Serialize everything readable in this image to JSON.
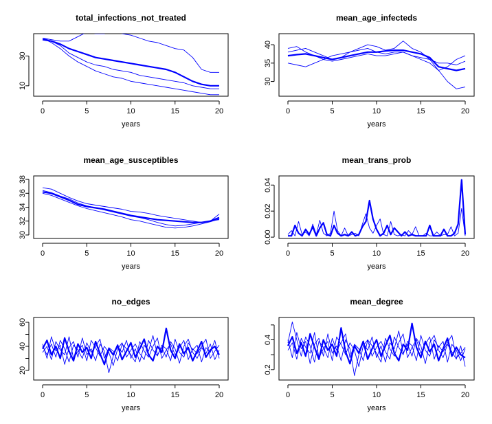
{
  "chart_data": [
    {
      "type": "line",
      "title": "total_infections_not_treated",
      "xlabel": "years",
      "ylabel": "",
      "xlim": [
        0,
        20
      ],
      "ylim": [
        3,
        45
      ],
      "xticks": [
        0,
        5,
        10,
        15,
        20
      ],
      "yticks": [
        10,
        30
      ],
      "x": [
        0,
        1,
        2,
        3,
        4,
        5,
        6,
        7,
        8,
        9,
        10,
        11,
        12,
        13,
        14,
        15,
        16,
        17,
        18,
        19,
        20
      ],
      "series": [
        {
          "bold": true,
          "values": [
            41,
            40,
            38,
            35,
            33,
            31,
            29,
            28,
            27,
            26,
            25,
            24,
            23,
            22,
            21,
            19,
            16,
            13,
            11,
            10,
            10
          ]
        },
        {
          "bold": false,
          "values": [
            42,
            41,
            40,
            40,
            43,
            46,
            45,
            45,
            47,
            45,
            44,
            42,
            40,
            39,
            37,
            35,
            34,
            29,
            21,
            19,
            19
          ]
        },
        {
          "bold": false,
          "values": [
            42,
            40,
            37,
            32,
            29,
            26,
            24,
            23,
            21,
            20,
            19,
            17,
            16,
            15,
            14,
            13,
            12,
            10,
            9,
            8,
            8
          ]
        },
        {
          "bold": false,
          "values": [
            42,
            39,
            35,
            30,
            26,
            23,
            20,
            18,
            16,
            15,
            13,
            12,
            11,
            10,
            9,
            8,
            7,
            6,
            5,
            4,
            4
          ]
        }
      ]
    },
    {
      "type": "line",
      "title": "mean_age_infecteds",
      "xlabel": "years",
      "ylabel": "",
      "xlim": [
        0,
        20
      ],
      "ylim": [
        26,
        43
      ],
      "xticks": [
        0,
        5,
        10,
        15,
        20
      ],
      "yticks": [
        30,
        35,
        40
      ],
      "x": [
        0,
        1,
        2,
        3,
        4,
        5,
        6,
        7,
        8,
        9,
        10,
        11,
        12,
        13,
        14,
        15,
        16,
        17,
        18,
        19,
        20
      ],
      "series": [
        {
          "bold": true,
          "values": [
            37,
            37.3,
            37.5,
            37,
            36.5,
            36,
            36.5,
            37,
            37.5,
            38,
            38,
            38.3,
            38.5,
            38.5,
            38,
            37.5,
            36.5,
            34,
            33.5,
            33,
            33.5
          ]
        },
        {
          "bold": false,
          "values": [
            38,
            38.5,
            39,
            38,
            37,
            36,
            36.5,
            38,
            39,
            40,
            39.5,
            38.5,
            39,
            41,
            39,
            38,
            36,
            33,
            34,
            36,
            37
          ]
        },
        {
          "bold": false,
          "values": [
            35,
            34.5,
            34,
            35,
            36,
            37,
            37.5,
            38,
            38.5,
            39,
            38,
            37.5,
            38,
            38,
            37,
            36,
            35,
            33,
            30,
            28,
            28.5
          ]
        },
        {
          "bold": false,
          "values": [
            39,
            39.5,
            38,
            37,
            36,
            35.5,
            36,
            36.5,
            37,
            37.5,
            37,
            37,
            37.5,
            38,
            37,
            36.5,
            36,
            35,
            35,
            34.5,
            35.5
          ]
        }
      ]
    },
    {
      "type": "line",
      "title": "mean_age_susceptibles",
      "xlabel": "years",
      "ylabel": "",
      "xlim": [
        0,
        20
      ],
      "ylim": [
        29.5,
        38.5
      ],
      "xticks": [
        0,
        5,
        10,
        15,
        20
      ],
      "yticks": [
        30,
        32,
        34,
        36,
        38
      ],
      "x": [
        0,
        1,
        2,
        3,
        4,
        5,
        6,
        7,
        8,
        9,
        10,
        11,
        12,
        13,
        14,
        15,
        16,
        17,
        18,
        19,
        20
      ],
      "series": [
        {
          "bold": true,
          "values": [
            36.2,
            36,
            35.5,
            35,
            34.4,
            34.1,
            33.9,
            33.7,
            33.4,
            33.1,
            32.8,
            32.6,
            32.4,
            32.2,
            32.1,
            32,
            31.9,
            31.8,
            31.8,
            32,
            32.5
          ]
        },
        {
          "bold": false,
          "values": [
            36.8,
            36.6,
            36,
            35.4,
            34.9,
            34.5,
            34.3,
            34.1,
            33.9,
            33.7,
            33.4,
            33.3,
            33.1,
            32.8,
            32.6,
            32.4,
            32.2,
            32,
            31.8,
            32,
            33
          ]
        },
        {
          "bold": false,
          "values": [
            36,
            35.7,
            35.2,
            34.7,
            34.2,
            33.8,
            33.5,
            33.2,
            32.9,
            32.6,
            32.2,
            32,
            31.7,
            31.4,
            31.1,
            31,
            31.1,
            31.3,
            31.6,
            31.9,
            32.3
          ]
        },
        {
          "bold": false,
          "values": [
            36.4,
            36.1,
            35.6,
            35.2,
            34.6,
            34.2,
            33.9,
            33.6,
            33.3,
            33,
            32.7,
            32.5,
            32.2,
            31.8,
            31.5,
            31.3,
            31.4,
            31.6,
            31.8,
            32,
            32.2
          ]
        }
      ]
    },
    {
      "type": "line",
      "title": "mean_trans_prob",
      "xlabel": "years",
      "ylabel": "",
      "xlim": [
        0,
        20
      ],
      "ylim": [
        -0.001,
        0.047
      ],
      "xticks": [
        0,
        5,
        10,
        15,
        20
      ],
      "yticks": [
        0.0,
        0.02,
        0.04
      ],
      "ytick_labels": [
        "0.00",
        "0.02",
        "0.04"
      ],
      "x": [
        0,
        0.4,
        0.8,
        1.2,
        1.6,
        2.0,
        2.4,
        2.8,
        3.2,
        3.6,
        4.0,
        4.4,
        4.8,
        5.2,
        5.6,
        6.0,
        6.4,
        6.8,
        7.2,
        7.6,
        8.0,
        8.4,
        8.8,
        9.2,
        9.6,
        10.0,
        10.4,
        10.8,
        11.2,
        11.6,
        12.0,
        12.4,
        12.8,
        13.2,
        13.6,
        14.0,
        14.4,
        14.8,
        15.2,
        15.6,
        16.0,
        16.4,
        16.8,
        17.2,
        17.6,
        18.0,
        18.4,
        18.8,
        19.2,
        19.6,
        20.0
      ],
      "series": [
        {
          "bold": true,
          "values": [
            0.001,
            0.001,
            0.009,
            0.003,
            0.001,
            0.006,
            0.002,
            0.008,
            0.001,
            0.007,
            0.011,
            0.002,
            0.001,
            0.009,
            0.003,
            0.001,
            0.002,
            0.001,
            0.004,
            0.001,
            0.002,
            0.008,
            0.012,
            0.028,
            0.014,
            0.006,
            0.001,
            0.003,
            0.009,
            0.002,
            0.007,
            0.004,
            0.001,
            0.004,
            0.001,
            0.002,
            0.001,
            0.001,
            0.001,
            0.001,
            0.009,
            0.001,
            0.001,
            0.001,
            0.006,
            0.001,
            0.001,
            0.003,
            0.01,
            0.044,
            0.002
          ]
        },
        {
          "bold": false,
          "values": [
            0.002,
            0.005,
            0.001,
            0.012,
            0.002,
            0.004,
            0.001,
            0.01,
            0.002,
            0.013,
            0.003,
            0.001,
            0.003,
            0.02,
            0.005,
            0.001,
            0.007,
            0.001,
            0.002,
            0.003,
            0.001,
            0.01,
            0.018,
            0.007,
            0.003,
            0.009,
            0.014,
            0.002,
            0.001,
            0.012,
            0.002,
            0.001,
            0.002,
            0.001,
            0.005,
            0.002,
            0.008,
            0.001,
            0.001,
            0.003,
            0.001,
            0.001,
            0.004,
            0.001,
            0.002,
            0.002,
            0.008,
            0.001,
            0.003,
            0.022,
            0.001
          ]
        }
      ]
    },
    {
      "type": "line",
      "title": "no_edges",
      "xlabel": "years",
      "ylabel": "",
      "xlim": [
        0,
        20
      ],
      "ylim": [
        12,
        64
      ],
      "xticks": [
        0,
        5,
        10,
        15,
        20
      ],
      "yticks": [
        20,
        40,
        60
      ],
      "minor_yticks": [
        30,
        50
      ],
      "x": [
        0,
        0.5,
        1,
        1.5,
        2,
        2.5,
        3,
        3.5,
        4,
        4.5,
        5,
        5.5,
        6,
        6.5,
        7,
        7.5,
        8,
        8.5,
        9,
        9.5,
        10,
        10.5,
        11,
        11.5,
        12,
        12.5,
        13,
        13.5,
        14,
        14.5,
        15,
        15.5,
        16,
        16.5,
        17,
        17.5,
        18,
        18.5,
        19,
        19.5,
        20
      ],
      "series": [
        {
          "bold": true,
          "values": [
            38,
            45,
            33,
            40,
            30,
            47,
            36,
            28,
            42,
            35,
            39,
            30,
            44,
            34,
            25,
            38,
            33,
            41,
            29,
            36,
            43,
            31,
            38,
            46,
            33,
            28,
            40,
            35,
            55,
            37,
            30,
            42,
            34,
            39,
            28,
            36,
            44,
            31,
            37,
            40,
            33
          ]
        },
        {
          "bold": false,
          "values": [
            42,
            30,
            48,
            36,
            41,
            25,
            39,
            44,
            31,
            47,
            33,
            38,
            28,
            42,
            36,
            18,
            32,
            40,
            35,
            45,
            30,
            38,
            27,
            41,
            36,
            49,
            33,
            39,
            31,
            44,
            38,
            26,
            40,
            46,
            35,
            30,
            39,
            34,
            42,
            29,
            37
          ]
        },
        {
          "bold": false,
          "values": [
            35,
            40,
            29,
            44,
            37,
            33,
            48,
            30,
            36,
            41,
            28,
            45,
            39,
            32,
            40,
            35,
            24,
            38,
            43,
            31,
            37,
            42,
            34,
            29,
            45,
            37,
            32,
            41,
            38,
            28,
            46,
            35,
            31,
            43,
            37,
            41,
            27,
            39,
            35,
            45,
            30
          ]
        },
        {
          "bold": false,
          "values": [
            40,
            33,
            42,
            31,
            45,
            38,
            27,
            41,
            37,
            30,
            43,
            35,
            40,
            46,
            30,
            39,
            36,
            28,
            42,
            38,
            33,
            27,
            44,
            36,
            31,
            40,
            47,
            30,
            37,
            42,
            33,
            39,
            45,
            29,
            38,
            34,
            40,
            46,
            30,
            36,
            41
          ]
        }
      ]
    },
    {
      "type": "line",
      "title": "mean_degree",
      "xlabel": "years",
      "ylabel": "",
      "xlim": [
        0,
        20
      ],
      "ylim": [
        0.13,
        0.55
      ],
      "xticks": [
        0,
        5,
        10,
        15,
        20
      ],
      "yticks": [
        0.2,
        0.4
      ],
      "minor_yticks": [
        0.3,
        0.5
      ],
      "x": [
        0,
        0.5,
        1,
        1.5,
        2,
        2.5,
        3,
        3.5,
        4,
        4.5,
        5,
        5.5,
        6,
        6.5,
        7,
        7.5,
        8,
        8.5,
        9,
        9.5,
        10,
        10.5,
        11,
        11.5,
        12,
        12.5,
        13,
        13.5,
        14,
        14.5,
        15,
        15.5,
        16,
        16.5,
        17,
        17.5,
        18,
        18.5,
        19,
        19.5,
        20
      ],
      "series": [
        {
          "bold": true,
          "values": [
            0.36,
            0.42,
            0.31,
            0.38,
            0.29,
            0.44,
            0.35,
            0.27,
            0.4,
            0.33,
            0.37,
            0.29,
            0.48,
            0.32,
            0.24,
            0.36,
            0.31,
            0.39,
            0.27,
            0.34,
            0.4,
            0.29,
            0.36,
            0.43,
            0.31,
            0.26,
            0.37,
            0.33,
            0.51,
            0.35,
            0.28,
            0.39,
            0.32,
            0.37,
            0.26,
            0.34,
            0.41,
            0.29,
            0.35,
            0.3,
            0.28
          ]
        },
        {
          "bold": false,
          "values": [
            0.4,
            0.28,
            0.45,
            0.34,
            0.39,
            0.24,
            0.37,
            0.41,
            0.29,
            0.44,
            0.31,
            0.36,
            0.26,
            0.4,
            0.34,
            0.16,
            0.3,
            0.38,
            0.33,
            0.42,
            0.28,
            0.36,
            0.25,
            0.38,
            0.34,
            0.46,
            0.31,
            0.37,
            0.29,
            0.41,
            0.36,
            0.24,
            0.38,
            0.43,
            0.33,
            0.28,
            0.37,
            0.32,
            0.27,
            0.36,
            0.22
          ]
        },
        {
          "bold": false,
          "values": [
            0.33,
            0.38,
            0.27,
            0.41,
            0.35,
            0.31,
            0.45,
            0.28,
            0.34,
            0.39,
            0.26,
            0.42,
            0.37,
            0.3,
            0.38,
            0.33,
            0.22,
            0.36,
            0.4,
            0.29,
            0.35,
            0.39,
            0.32,
            0.27,
            0.42,
            0.35,
            0.3,
            0.39,
            0.36,
            0.26,
            0.43,
            0.33,
            0.29,
            0.4,
            0.35,
            0.39,
            0.25,
            0.37,
            0.33,
            0.26,
            0.34
          ]
        },
        {
          "bold": false,
          "values": [
            0.38,
            0.52,
            0.4,
            0.29,
            0.42,
            0.36,
            0.25,
            0.39,
            0.35,
            0.28,
            0.41,
            0.33,
            0.38,
            0.44,
            0.28,
            0.37,
            0.34,
            0.26,
            0.4,
            0.36,
            0.31,
            0.25,
            0.41,
            0.34,
            0.29,
            0.38,
            0.44,
            0.28,
            0.35,
            0.4,
            0.31,
            0.37,
            0.42,
            0.27,
            0.36,
            0.32,
            0.38,
            0.43,
            0.28,
            0.31,
            0.35
          ]
        }
      ]
    }
  ],
  "colors": {
    "series": "#0000ff",
    "axes": "#000000",
    "background": "#ffffff"
  }
}
